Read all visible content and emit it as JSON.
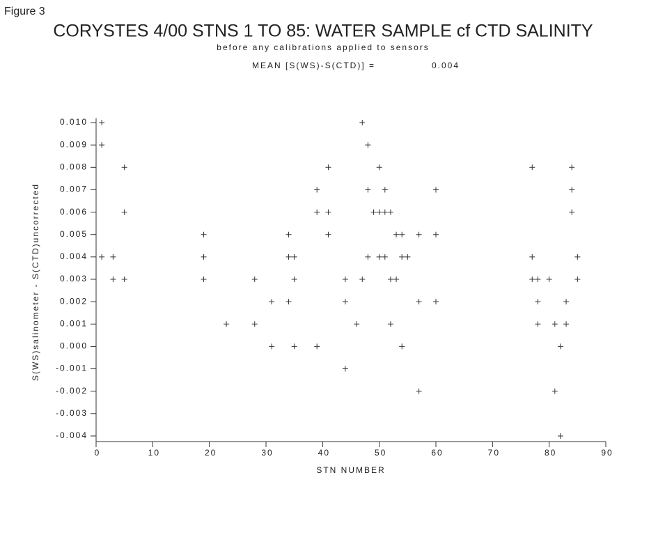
{
  "chart_data": {
    "type": "scatter",
    "figure_label": "Figure 3",
    "title": "CORYSTES 4/00 STNS 1 TO 85: WATER SAMPLE cf CTD SALINITY",
    "subtitle": "before any calibrations applied to sensors",
    "annotations": [
      "MEAN [S(WS)-S(CTD)] =",
      "0.004"
    ],
    "xlabel": "STN NUMBER",
    "ylabel": "S(WS)salinometer - S(CTD)uncorrected",
    "xlim": [
      0,
      90
    ],
    "xticks": [
      0,
      10,
      20,
      30,
      40,
      50,
      60,
      70,
      80,
      90
    ],
    "ylim": [
      -0.00425,
      0.0102
    ],
    "yticks": [
      {
        "value": 0.01,
        "label": "0.010"
      },
      {
        "value": 0.009,
        "label": "0.009"
      },
      {
        "value": 0.008,
        "label": "0.008"
      },
      {
        "value": 0.007,
        "label": "0.007"
      },
      {
        "value": 0.006,
        "label": "0.006"
      },
      {
        "value": 0.005,
        "label": "0.005"
      },
      {
        "value": 0.004,
        "label": "0.004"
      },
      {
        "value": 0.003,
        "label": "0.003"
      },
      {
        "value": 0.002,
        "label": "0.002"
      },
      {
        "value": 0.001,
        "label": "0.001"
      },
      {
        "value": 0,
        "label": "0.000"
      },
      {
        "value": -0.001,
        "label": "-0.001"
      },
      {
        "value": -0.002,
        "label": "-0.002"
      },
      {
        "value": -0.003,
        "label": "-0.003"
      },
      {
        "value": -0.004,
        "label": "-0.004"
      }
    ],
    "color": "#333333",
    "x": [
      1,
      47,
      1,
      48,
      5,
      41,
      50,
      77,
      84,
      39,
      48,
      51,
      60,
      84,
      5,
      39,
      41,
      49,
      50,
      51,
      52,
      84,
      19,
      34,
      41,
      53,
      54,
      57,
      60,
      1,
      3,
      19,
      34,
      35,
      48,
      50,
      51,
      54,
      55,
      77,
      85,
      3,
      5,
      19,
      28,
      35,
      44,
      47,
      52,
      53,
      77,
      78,
      80,
      85,
      31,
      34,
      44,
      57,
      60,
      78,
      83,
      23,
      28,
      46,
      52,
      78,
      81,
      83,
      31,
      35,
      39,
      54,
      82,
      44,
      57,
      81,
      82
    ],
    "y": [
      0.01,
      0.01,
      0.009,
      0.009,
      0.008,
      0.008,
      0.008,
      0.008,
      0.008,
      0.007,
      0.007,
      0.007,
      0.007,
      0.007,
      0.006,
      0.006,
      0.006,
      0.006,
      0.006,
      0.006,
      0.006,
      0.006,
      0.005,
      0.005,
      0.005,
      0.005,
      0.005,
      0.005,
      0.005,
      0.004,
      0.004,
      0.004,
      0.004,
      0.004,
      0.004,
      0.004,
      0.004,
      0.004,
      0.004,
      0.004,
      0.004,
      0.003,
      0.003,
      0.003,
      0.003,
      0.003,
      0.003,
      0.003,
      0.003,
      0.003,
      0.003,
      0.003,
      0.003,
      0.003,
      0.002,
      0.002,
      0.002,
      0.002,
      0.002,
      0.002,
      0.002,
      0.001,
      0.001,
      0.001,
      0.001,
      0.001,
      0.001,
      0.001,
      0,
      0,
      0,
      0,
      0,
      -0.001,
      -0.002,
      -0.002,
      -0.004
    ]
  }
}
